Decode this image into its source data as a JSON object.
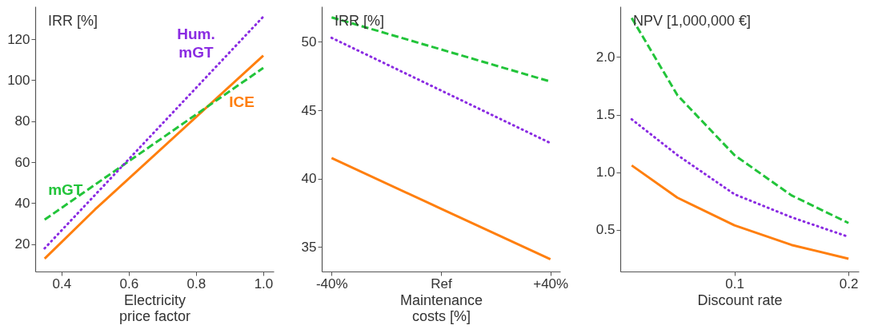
{
  "chart_data": [
    {
      "type": "line",
      "ylabel": "IRR [%]",
      "xlabel": "Electricity\nprice factor",
      "xlim": [
        0.322,
        1.031
      ],
      "xticks": [
        {
          "value": 0.4,
          "label": "0.4"
        },
        {
          "value": 0.6,
          "label": "0.6"
        },
        {
          "value": 0.8,
          "label": "0.8"
        },
        {
          "value": 1.0,
          "label": "1.0"
        }
      ],
      "ylim": [
        6.7,
        136
      ],
      "yticks": [
        20,
        40,
        60,
        80,
        100,
        120
      ],
      "series": [
        {
          "name": "ICE",
          "color": "#ff7f0e",
          "line_style": "solid",
          "x": [
            0.35,
            0.5,
            1.0
          ],
          "values": [
            13,
            37,
            112
          ]
        },
        {
          "name": "mGT",
          "color": "#22c43a",
          "line_style": "dashed",
          "x": [
            0.35,
            1.0
          ],
          "values": [
            32,
            106
          ]
        },
        {
          "name": "Hum.\nmGT",
          "color": "#8a2be2",
          "line_style": "dotted",
          "x": [
            0.35,
            1.0
          ],
          "values": [
            18,
            131
          ]
        }
      ]
    },
    {
      "type": "line",
      "ylabel": "IRR [%]",
      "xlabel": "Maintenance\ncosts [%]",
      "categories": [
        "-40%",
        "Ref",
        "+40%"
      ],
      "ylim": [
        33.2,
        52.6
      ],
      "yticks": [
        35,
        40,
        45,
        50
      ],
      "series": [
        {
          "color": "#ff7f0e",
          "line_style": "solid",
          "values": [
            41.5,
            37.8,
            34.1
          ]
        },
        {
          "color": "#22c43a",
          "line_style": "dashed",
          "values": [
            51.8,
            49.45,
            47.1
          ]
        },
        {
          "color": "#8a2be2",
          "line_style": "dotted",
          "values": [
            50.3,
            46.45,
            42.6
          ]
        }
      ]
    },
    {
      "type": "line",
      "ylabel": "NPV [1,000,000 €]",
      "xlabel": "Discount rate",
      "x": [
        0.01,
        0.05,
        0.1,
        0.15,
        0.2
      ],
      "xlim": [
        0.0,
        0.209
      ],
      "xticks": [
        0.1,
        0.2
      ],
      "ylim": [
        0.139,
        2.44
      ],
      "yticks": [
        {
          "value": 0.5,
          "label": "0.5"
        },
        {
          "value": 1.0,
          "label": "1.0"
        },
        {
          "value": 1.5,
          "label": "1.5"
        },
        {
          "value": 2.0,
          "label": "2.0"
        }
      ],
      "series": [
        {
          "color": "#ff7f0e",
          "line_style": "solid",
          "values": [
            1.06,
            0.78,
            0.54,
            0.37,
            0.25
          ]
        },
        {
          "color": "#22c43a",
          "line_style": "dashed",
          "values": [
            2.34,
            1.67,
            1.15,
            0.8,
            0.56
          ]
        },
        {
          "color": "#8a2be2",
          "line_style": "dotted",
          "values": [
            1.46,
            1.15,
            0.81,
            0.61,
            0.44
          ]
        }
      ]
    }
  ]
}
